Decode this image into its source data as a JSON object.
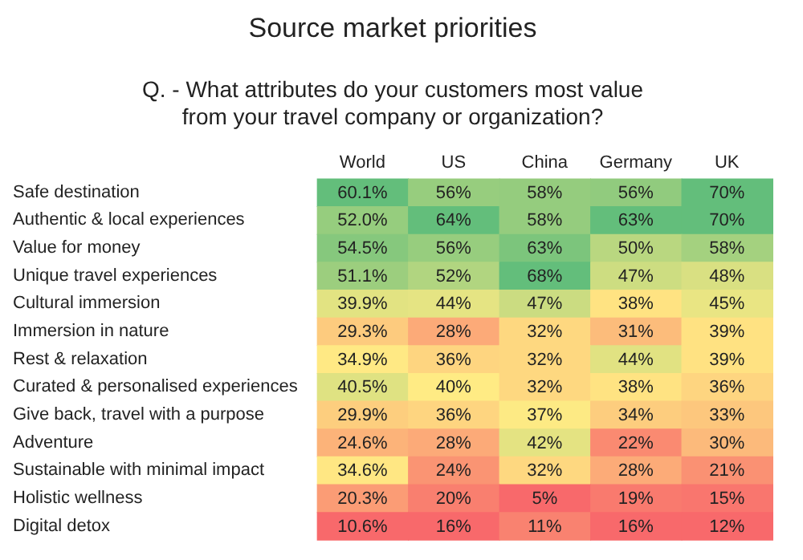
{
  "chart_data": {
    "type": "heatmap",
    "title": "Source market priorities",
    "subtitle": "Q. - What attributes do your customers most value from your travel company or organization?",
    "categories": [
      "World",
      "US",
      "China",
      "Germany",
      "UK"
    ],
    "y_categories": [
      "Safe destination",
      "Authentic & local experiences",
      "Value for money",
      "Unique travel experiences",
      "Cultural immersion",
      "Immersion in nature",
      "Rest & relaxation",
      "Curated & personalised experiences",
      "Give back, travel with a purpose",
      "Adventure",
      "Sustainable with minimal impact",
      "Holistic wellness",
      "Digital detox"
    ],
    "cells": [
      [
        60.1,
        56,
        58,
        56,
        70
      ],
      [
        52.0,
        64,
        58,
        63,
        70
      ],
      [
        54.5,
        56,
        63,
        50,
        58
      ],
      [
        51.1,
        52,
        68,
        47,
        48
      ],
      [
        39.9,
        44,
        47,
        38,
        45
      ],
      [
        29.3,
        28,
        32,
        31,
        39
      ],
      [
        34.9,
        36,
        32,
        44,
        39
      ],
      [
        40.5,
        40,
        32,
        38,
        36
      ],
      [
        29.9,
        36,
        37,
        34,
        33
      ],
      [
        24.6,
        28,
        42,
        22,
        30
      ],
      [
        34.6,
        24,
        32,
        28,
        21
      ],
      [
        20.3,
        20,
        5,
        19,
        15
      ],
      [
        10.6,
        16,
        11,
        16,
        12
      ]
    ],
    "cell_labels": [
      [
        "60.1%",
        "56%",
        "58%",
        "56%",
        "70%"
      ],
      [
        "52.0%",
        "64%",
        "58%",
        "63%",
        "70%"
      ],
      [
        "54.5%",
        "56%",
        "63%",
        "50%",
        "58%"
      ],
      [
        "51.1%",
        "52%",
        "68%",
        "47%",
        "48%"
      ],
      [
        "39.9%",
        "44%",
        "47%",
        "38%",
        "45%"
      ],
      [
        "29.3%",
        "28%",
        "32%",
        "31%",
        "39%"
      ],
      [
        "34.9%",
        "36%",
        "32%",
        "44%",
        "39%"
      ],
      [
        "40.5%",
        "40%",
        "32%",
        "38%",
        "36%"
      ],
      [
        "29.9%",
        "36%",
        "37%",
        "34%",
        "33%"
      ],
      [
        "24.6%",
        "28%",
        "42%",
        "22%",
        "30%"
      ],
      [
        "34.6%",
        "24%",
        "32%",
        "28%",
        "21%"
      ],
      [
        "20.3%",
        "20%",
        "5%",
        "19%",
        "15%"
      ],
      [
        "10.6%",
        "16%",
        "11%",
        "16%",
        "12%"
      ]
    ]
  }
}
